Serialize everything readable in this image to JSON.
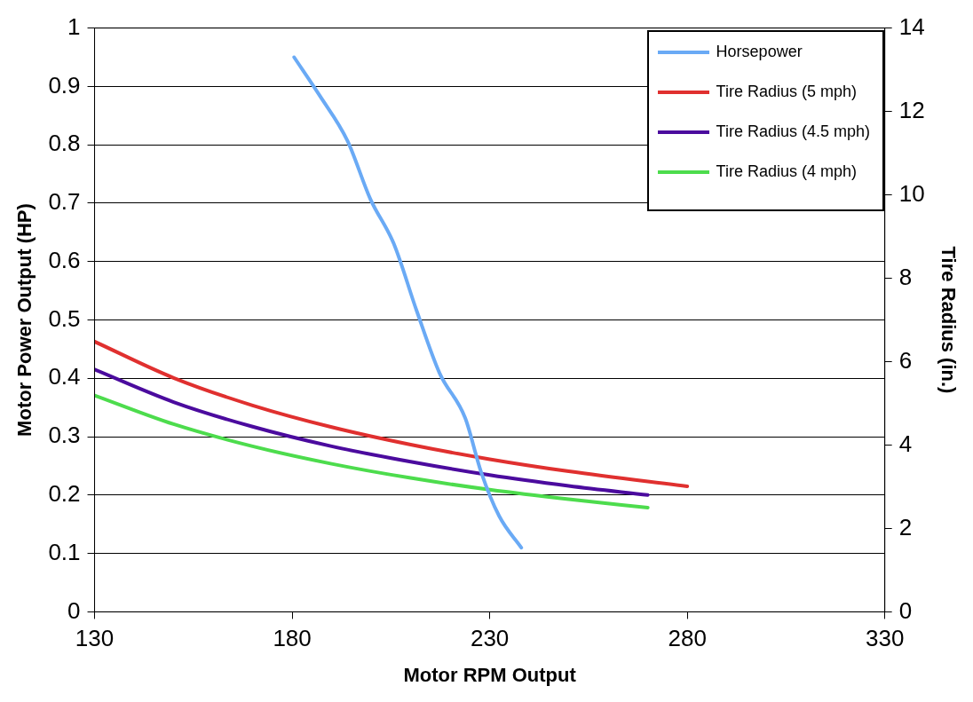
{
  "chart_data": {
    "type": "line",
    "xlabel": "Motor RPM Output",
    "ylabel": "Motor Power Output (HP)",
    "y2label": "Tire Radius (in.)",
    "xlim": [
      130,
      330
    ],
    "xticks": [
      130,
      180,
      230,
      280,
      330
    ],
    "ylim": [
      0,
      1
    ],
    "yticks": [
      0,
      0.1,
      0.2,
      0.3,
      0.4,
      0.5,
      0.6,
      0.7,
      0.8,
      0.9,
      1
    ],
    "y2lim": [
      0,
      14
    ],
    "y2ticks": [
      0,
      2,
      4,
      6,
      8,
      10,
      12,
      14
    ],
    "grid": "y",
    "legend": "top right",
    "marker": "none",
    "line_style": "solid",
    "series": [
      {
        "name": "Horsepower",
        "color": "#6aaaf5",
        "x": [
          180.5,
          187,
          194,
          199.8,
          205.7,
          211.5,
          217.3,
          223.8,
          227.8,
          232.4,
          238
        ],
        "values": [
          0.95,
          0.884,
          0.807,
          0.707,
          0.631,
          0.516,
          0.409,
          0.332,
          0.24,
          0.164,
          0.11
        ]
      },
      {
        "name": "Tire Radius (5 mph)",
        "color": "#e0302f",
        "axis": "y2",
        "x": [
          130,
          150,
          170,
          190,
          210,
          230,
          250,
          280
        ],
        "values": [
          6.48,
          5.61,
          4.95,
          4.43,
          4.01,
          3.66,
          3.37,
          3.01
        ]
      },
      {
        "name": "Tire Radius (4.5 mph)",
        "color": "#4b0b9e",
        "axis": "y2",
        "x": [
          130,
          150,
          170,
          190,
          210,
          230,
          250,
          270
        ],
        "values": [
          5.81,
          5.03,
          4.44,
          3.97,
          3.6,
          3.28,
          3.02,
          2.8
        ]
      },
      {
        "name": "Tire Radius (4 mph)",
        "color": "#4ddc4d",
        "axis": "y2",
        "x": [
          130,
          150,
          170,
          190,
          210,
          230,
          250,
          270
        ],
        "values": [
          5.19,
          4.5,
          3.97,
          3.55,
          3.21,
          2.93,
          2.7,
          2.5
        ]
      }
    ]
  }
}
